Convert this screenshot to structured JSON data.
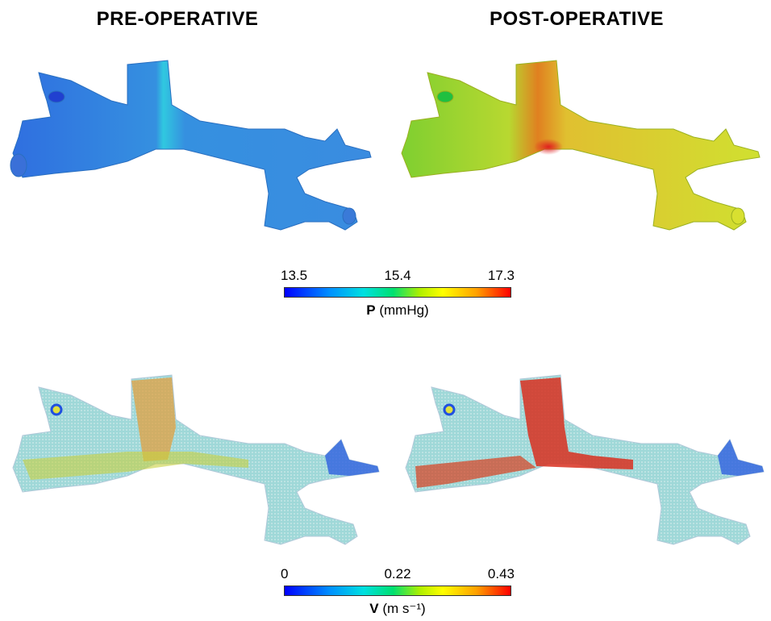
{
  "titles": {
    "pre": "PRE-OPERATIVE",
    "post": "POST-OPERATIVE"
  },
  "colorbar_pressure": {
    "ticks": [
      "13.5",
      "15.4",
      "17.3"
    ],
    "variable": "P",
    "unit": "(mmHg)"
  },
  "colorbar_velocity": {
    "ticks": [
      "0",
      "0.22",
      "0.43"
    ],
    "variable": "V",
    "unit": "(m s⁻¹)"
  },
  "colors": {
    "pressure_pre": "#2f8fe0",
    "pressure_post": "#c8e030",
    "velocity_low": "#3fb0c0",
    "velocity_high": "#e04020"
  }
}
